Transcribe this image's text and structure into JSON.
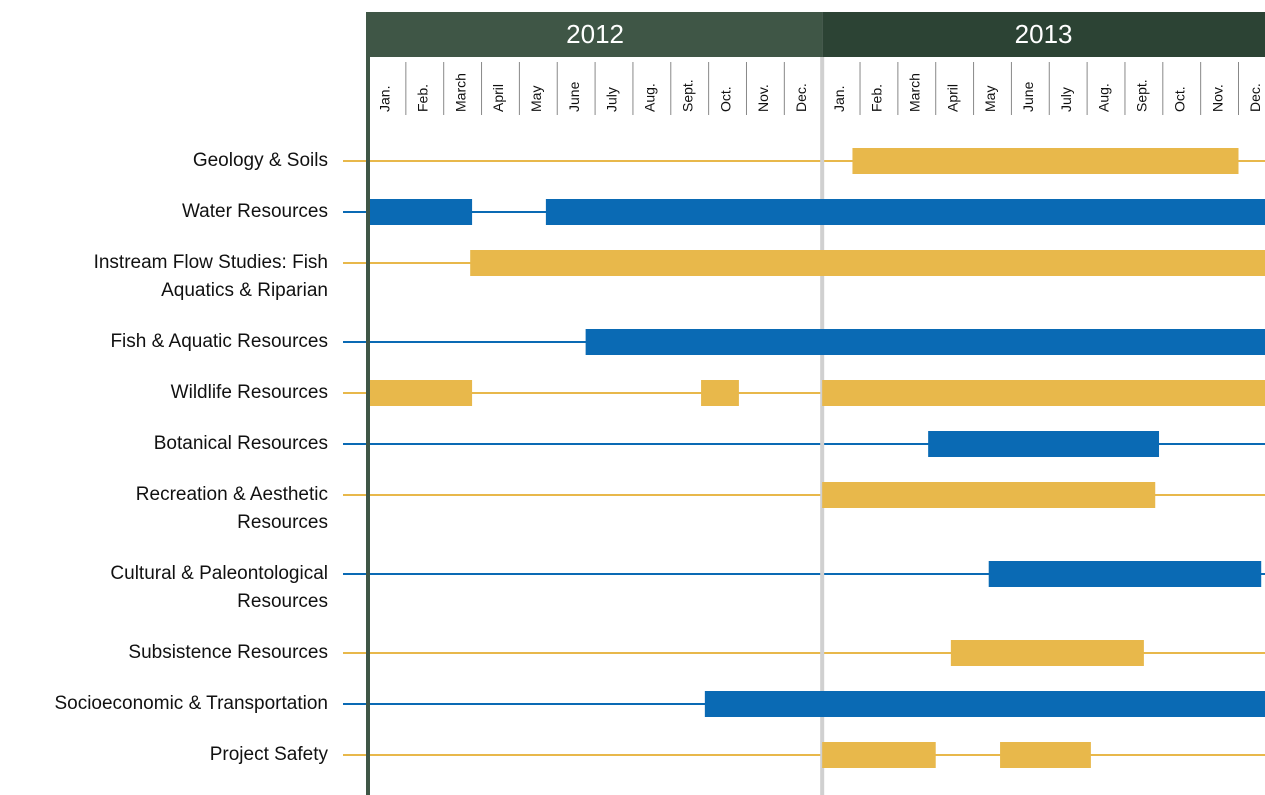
{
  "chart_data": {
    "type": "gantt",
    "xlim": [
      0,
      23.7
    ],
    "years": [
      {
        "label": "2012",
        "color": "#3f5646",
        "start": 0,
        "end": 12,
        "months": [
          "Jan.",
          "Feb.",
          "March",
          "April",
          "May",
          "June",
          "July",
          "Aug.",
          "Sept.",
          "Oct.",
          "Nov.",
          "Dec."
        ]
      },
      {
        "label": "2013",
        "color": "#2c4334",
        "start": 12,
        "end": 24,
        "months": [
          "Jan.",
          "Feb.",
          "March",
          "April",
          "May",
          "June",
          "July",
          "Aug.",
          "Sept.",
          "Oct.",
          "Nov.",
          "Dec."
        ]
      }
    ],
    "tasks": [
      {
        "name": [
          "Geology & Soils"
        ],
        "color": "#e8b84b",
        "bars": [
          {
            "start": 12.8,
            "end": 23
          }
        ]
      },
      {
        "name": [
          "Water Resources"
        ],
        "color": "#0a6ab4",
        "bars": [
          {
            "start": 0,
            "end": 2.75
          },
          {
            "start": 4.7,
            "end": 23.7
          }
        ]
      },
      {
        "name": [
          "Instream Flow Studies: Fish",
          "Aquatics & Riparian"
        ],
        "color": "#e8b84b",
        "bars": [
          {
            "start": 2.7,
            "end": 23.7
          }
        ]
      },
      {
        "name": [
          "Fish & Aquatic Resources"
        ],
        "color": "#0a6ab4",
        "bars": [
          {
            "start": 5.75,
            "end": 23.7
          }
        ]
      },
      {
        "name": [
          "Wildlife Resources"
        ],
        "color": "#e8b84b",
        "bars": [
          {
            "start": 0,
            "end": 2.75
          },
          {
            "start": 8.8,
            "end": 9.8
          },
          {
            "start": 12,
            "end": 23.7
          }
        ]
      },
      {
        "name": [
          "Botanical Resources"
        ],
        "color": "#0a6ab4",
        "bars": [
          {
            "start": 14.8,
            "end": 20.9
          }
        ]
      },
      {
        "name": [
          "Recreation & Aesthetic",
          "Resources"
        ],
        "color": "#e8b84b",
        "bars": [
          {
            "start": 12,
            "end": 20.8
          }
        ]
      },
      {
        "name": [
          "Cultural & Paleontological",
          "Resources"
        ],
        "color": "#0a6ab4",
        "bars": [
          {
            "start": 16.4,
            "end": 23.6
          }
        ]
      },
      {
        "name": [
          "Subsistence Resources"
        ],
        "color": "#e8b84b",
        "bars": [
          {
            "start": 15.4,
            "end": 20.5
          }
        ]
      },
      {
        "name": [
          "Socioeconomic & Transportation"
        ],
        "color": "#0a6ab4",
        "bars": [
          {
            "start": 8.9,
            "end": 23.7
          }
        ]
      },
      {
        "name": [
          "Project Safety"
        ],
        "color": "#e8b84b",
        "bars": [
          {
            "start": 12,
            "end": 15
          },
          {
            "start": 16.7,
            "end": 19.1
          }
        ]
      }
    ]
  }
}
